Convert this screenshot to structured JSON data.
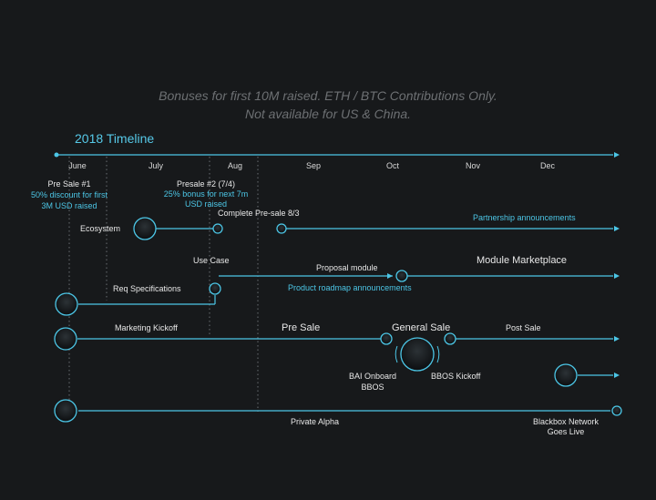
{
  "notice": {
    "line1": "Bonuses for first 10M raised. ETH / BTC Contributions Only.",
    "line2": "Not available for US & China."
  },
  "title": "2018 Timeline",
  "months": [
    "June",
    "July",
    "Aug",
    "Sep",
    "Oct",
    "Nov",
    "Dec"
  ],
  "presale1": {
    "title": "Pre Sale #1",
    "line1": "50% discount for first",
    "line2": "3M USD raised"
  },
  "presale2": {
    "title": "Presale #2 (7/4)",
    "line1": "25% bonus for next 7m",
    "line2": "USD raised"
  },
  "labels": {
    "complete_presale": "Complete Pre-sale 8/3",
    "partnership": "Partnership announcements",
    "ecosystem": "Ecosystem",
    "use_case": "Use Case",
    "proposal_module": "Proposal module",
    "module_marketplace": "Module Marketplace",
    "req_specifications": "Req Specifications",
    "product_roadmap": "Product roadmap announcements",
    "marketing_kickoff": "Marketing Kickoff",
    "pre_sale": "Pre Sale",
    "general_sale": "General Sale",
    "post_sale": "Post Sale",
    "bai_onboard_1": "BAI Onboard",
    "bai_onboard_2": "BBOS",
    "bbos_kickoff": "BBOS Kickoff",
    "private_alpha": "Private Alpha",
    "blackbox_1": "Blackbox Network",
    "blackbox_2": "Goes Live"
  },
  "colors": {
    "background": "#17191b",
    "accent": "#4cc6e6",
    "text": "#e8e8e8",
    "muted": "#6d7073"
  }
}
